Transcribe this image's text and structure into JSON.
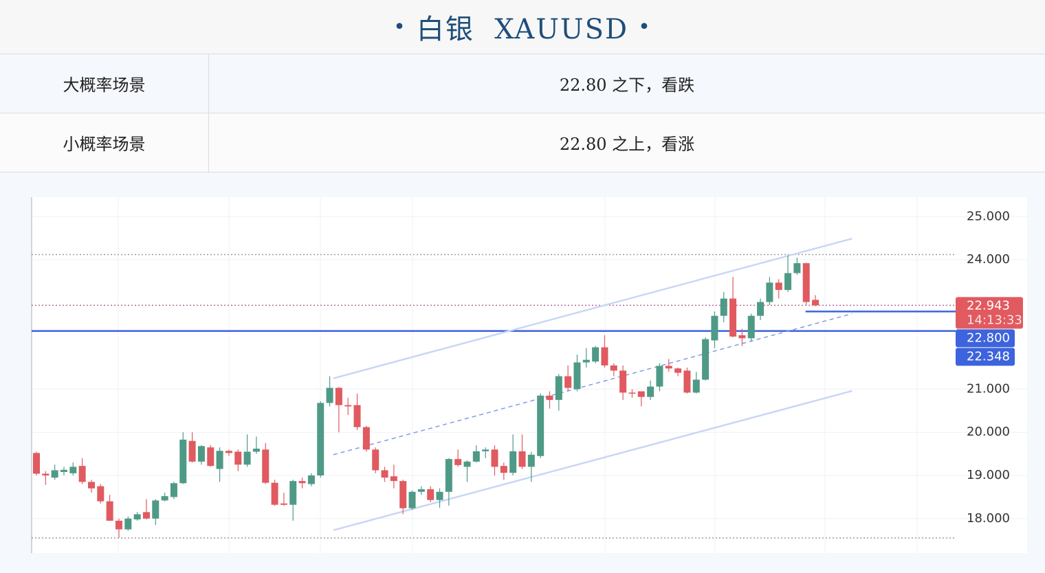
{
  "header": {
    "title": "白银  XAUUSD"
  },
  "table": {
    "rows": [
      [
        "大概率场景",
        "22.80 之下，看跌"
      ],
      [
        "小概率场景",
        "22.80 之上，看涨"
      ]
    ]
  },
  "chart_data": {
    "type": "candlestick",
    "up_color": "#4e9a87",
    "down_color": "#e05a60",
    "open": [
      19.52,
      19.04,
      18.95,
      19.08,
      19.05,
      19.22,
      18.85,
      18.75,
      18.4,
      17.95,
      17.75,
      17.98,
      18.15,
      18.0,
      18.42,
      18.5,
      18.82,
      19.8,
      19.32,
      19.65,
      19.15,
      19.57,
      19.55,
      19.25,
      19.55,
      19.6,
      18.83,
      18.35,
      18.32,
      18.87,
      18.8,
      19.0,
      20.68,
      21.03,
      20.63,
      20.63,
      20.12,
      19.6,
      19.12,
      18.98,
      18.87,
      18.24,
      18.62,
      18.68,
      18.43,
      18.62,
      19.38,
      19.2,
      19.32,
      19.56,
      19.6,
      19.22,
      19.06,
      19.56,
      19.2,
      19.45,
      20.85,
      20.75,
      21.3,
      21.0,
      21.62,
      21.64,
      21.97,
      21.55,
      21.43,
      20.92,
      20.95,
      20.82,
      21.06,
      21.54,
      21.48,
      21.43,
      20.92,
      21.22,
      22.13,
      22.7,
      23.1,
      22.25,
      22.18,
      22.7,
      23.02,
      23.47,
      23.3,
      23.69,
      23.92,
      23.07
    ],
    "high": [
      19.55,
      19.1,
      19.25,
      19.2,
      19.3,
      19.4,
      18.9,
      18.8,
      18.55,
      18.0,
      18.05,
      18.15,
      18.45,
      18.45,
      18.6,
      18.85,
      20.0,
      20.0,
      19.7,
      19.7,
      19.65,
      19.6,
      19.6,
      19.95,
      19.9,
      19.75,
      18.9,
      18.6,
      18.9,
      18.95,
      19.05,
      20.72,
      21.3,
      21.05,
      20.8,
      20.9,
      20.15,
      19.65,
      19.2,
      19.25,
      18.9,
      18.65,
      18.75,
      18.75,
      18.7,
      19.4,
      19.6,
      19.35,
      19.7,
      19.65,
      19.7,
      19.3,
      19.95,
      19.95,
      19.55,
      20.9,
      20.95,
      21.35,
      21.55,
      21.8,
      21.95,
      22.0,
      22.25,
      21.6,
      21.55,
      21.0,
      20.95,
      21.2,
      21.6,
      21.7,
      21.5,
      21.5,
      21.4,
      22.2,
      22.8,
      23.25,
      23.6,
      22.4,
      22.75,
      23.1,
      23.6,
      23.55,
      24.1,
      24.05,
      23.93,
      23.18
    ],
    "low": [
      19.0,
      18.78,
      18.9,
      19.0,
      19.0,
      18.8,
      18.6,
      18.35,
      17.95,
      17.55,
      17.72,
      17.95,
      17.98,
      17.85,
      18.4,
      18.45,
      18.8,
      19.3,
      19.25,
      19.2,
      18.85,
      19.45,
      19.1,
      19.2,
      19.5,
      18.8,
      18.3,
      18.3,
      17.95,
      18.7,
      18.75,
      18.95,
      20.6,
      20.0,
      20.4,
      20.05,
      19.55,
      19.05,
      18.85,
      18.7,
      18.1,
      18.2,
      18.55,
      18.38,
      18.25,
      18.3,
      19.2,
      18.85,
      19.3,
      19.4,
      19.0,
      18.9,
      19.0,
      19.15,
      18.85,
      19.4,
      20.55,
      20.5,
      20.95,
      20.95,
      21.5,
      21.6,
      21.5,
      21.3,
      20.75,
      20.8,
      20.6,
      20.75,
      20.95,
      21.4,
      21.3,
      20.9,
      20.9,
      21.2,
      21.95,
      22.55,
      22.2,
      22.0,
      22.1,
      22.6,
      22.95,
      23.1,
      23.25,
      23.65,
      22.95,
      22.92
    ],
    "close": [
      19.04,
      19.0,
      19.12,
      19.13,
      19.2,
      18.85,
      18.7,
      18.4,
      17.95,
      17.75,
      18.0,
      18.1,
      18.0,
      18.42,
      18.52,
      18.82,
      19.83,
      19.32,
      19.68,
      19.22,
      19.57,
      19.52,
      19.25,
      19.55,
      19.62,
      18.83,
      18.32,
      18.32,
      18.87,
      18.82,
      19.0,
      20.68,
      21.03,
      20.63,
      20.6,
      20.12,
      19.6,
      19.12,
      18.95,
      18.87,
      18.24,
      18.62,
      18.68,
      18.43,
      18.62,
      19.38,
      19.24,
      19.32,
      19.56,
      19.6,
      19.2,
      19.06,
      19.56,
      19.2,
      19.48,
      20.85,
      20.75,
      21.3,
      21.03,
      21.62,
      21.68,
      21.97,
      21.55,
      21.43,
      20.92,
      20.9,
      20.82,
      21.06,
      21.54,
      21.48,
      21.38,
      20.92,
      21.22,
      22.16,
      22.7,
      23.1,
      22.22,
      22.18,
      22.7,
      23.02,
      23.47,
      23.3,
      23.69,
      23.92,
      23.02,
      22.943
    ],
    "ylim": [
      17.2,
      25.45
    ],
    "yticks": [
      {
        "value": 18,
        "label": "18.000"
      },
      {
        "value": 19,
        "label": "19.000"
      },
      {
        "value": 20,
        "label": "20.000"
      },
      {
        "value": 21,
        "label": "21.000"
      },
      {
        "value": 24,
        "label": "24.000"
      },
      {
        "value": 25,
        "label": "25.000"
      }
    ],
    "grid": true,
    "trendlines": [
      {
        "x": [
          32.4,
          89
        ],
        "values": [
          21.25,
          24.49
        ],
        "color": "#c9d6f5",
        "dashed": false
      },
      {
        "x": [
          32.4,
          89
        ],
        "values": [
          17.73,
          20.96
        ],
        "color": "#c9d6f5",
        "dashed": false
      },
      {
        "x": [
          32.4,
          89
        ],
        "values": [
          19.48,
          22.75
        ],
        "color": "#7f9be8",
        "dashed": true
      }
    ],
    "levels": [
      {
        "value": 22.348,
        "color": "#3d63dd",
        "from": 0
      },
      {
        "value": 22.8,
        "color": "#3d63dd",
        "from": 84
      },
      {
        "value": 24.12,
        "color": "#9a9a9a",
        "from": 0,
        "dotted": true
      },
      {
        "value": 17.55,
        "color": "#9a9a9a",
        "from": 0,
        "dotted": true
      },
      {
        "value": 22.943,
        "color": "#b06a9a",
        "from": 0,
        "dotted": true
      }
    ],
    "price_tags": [
      {
        "value": 22.943,
        "label": "22.943",
        "countdown": "14:13:33",
        "color": "#e05a60"
      },
      {
        "value": 22.8,
        "label": "22.800",
        "color": "#3d63dd"
      },
      {
        "value": 22.348,
        "label": "22.348",
        "color": "#3d63dd"
      }
    ]
  }
}
